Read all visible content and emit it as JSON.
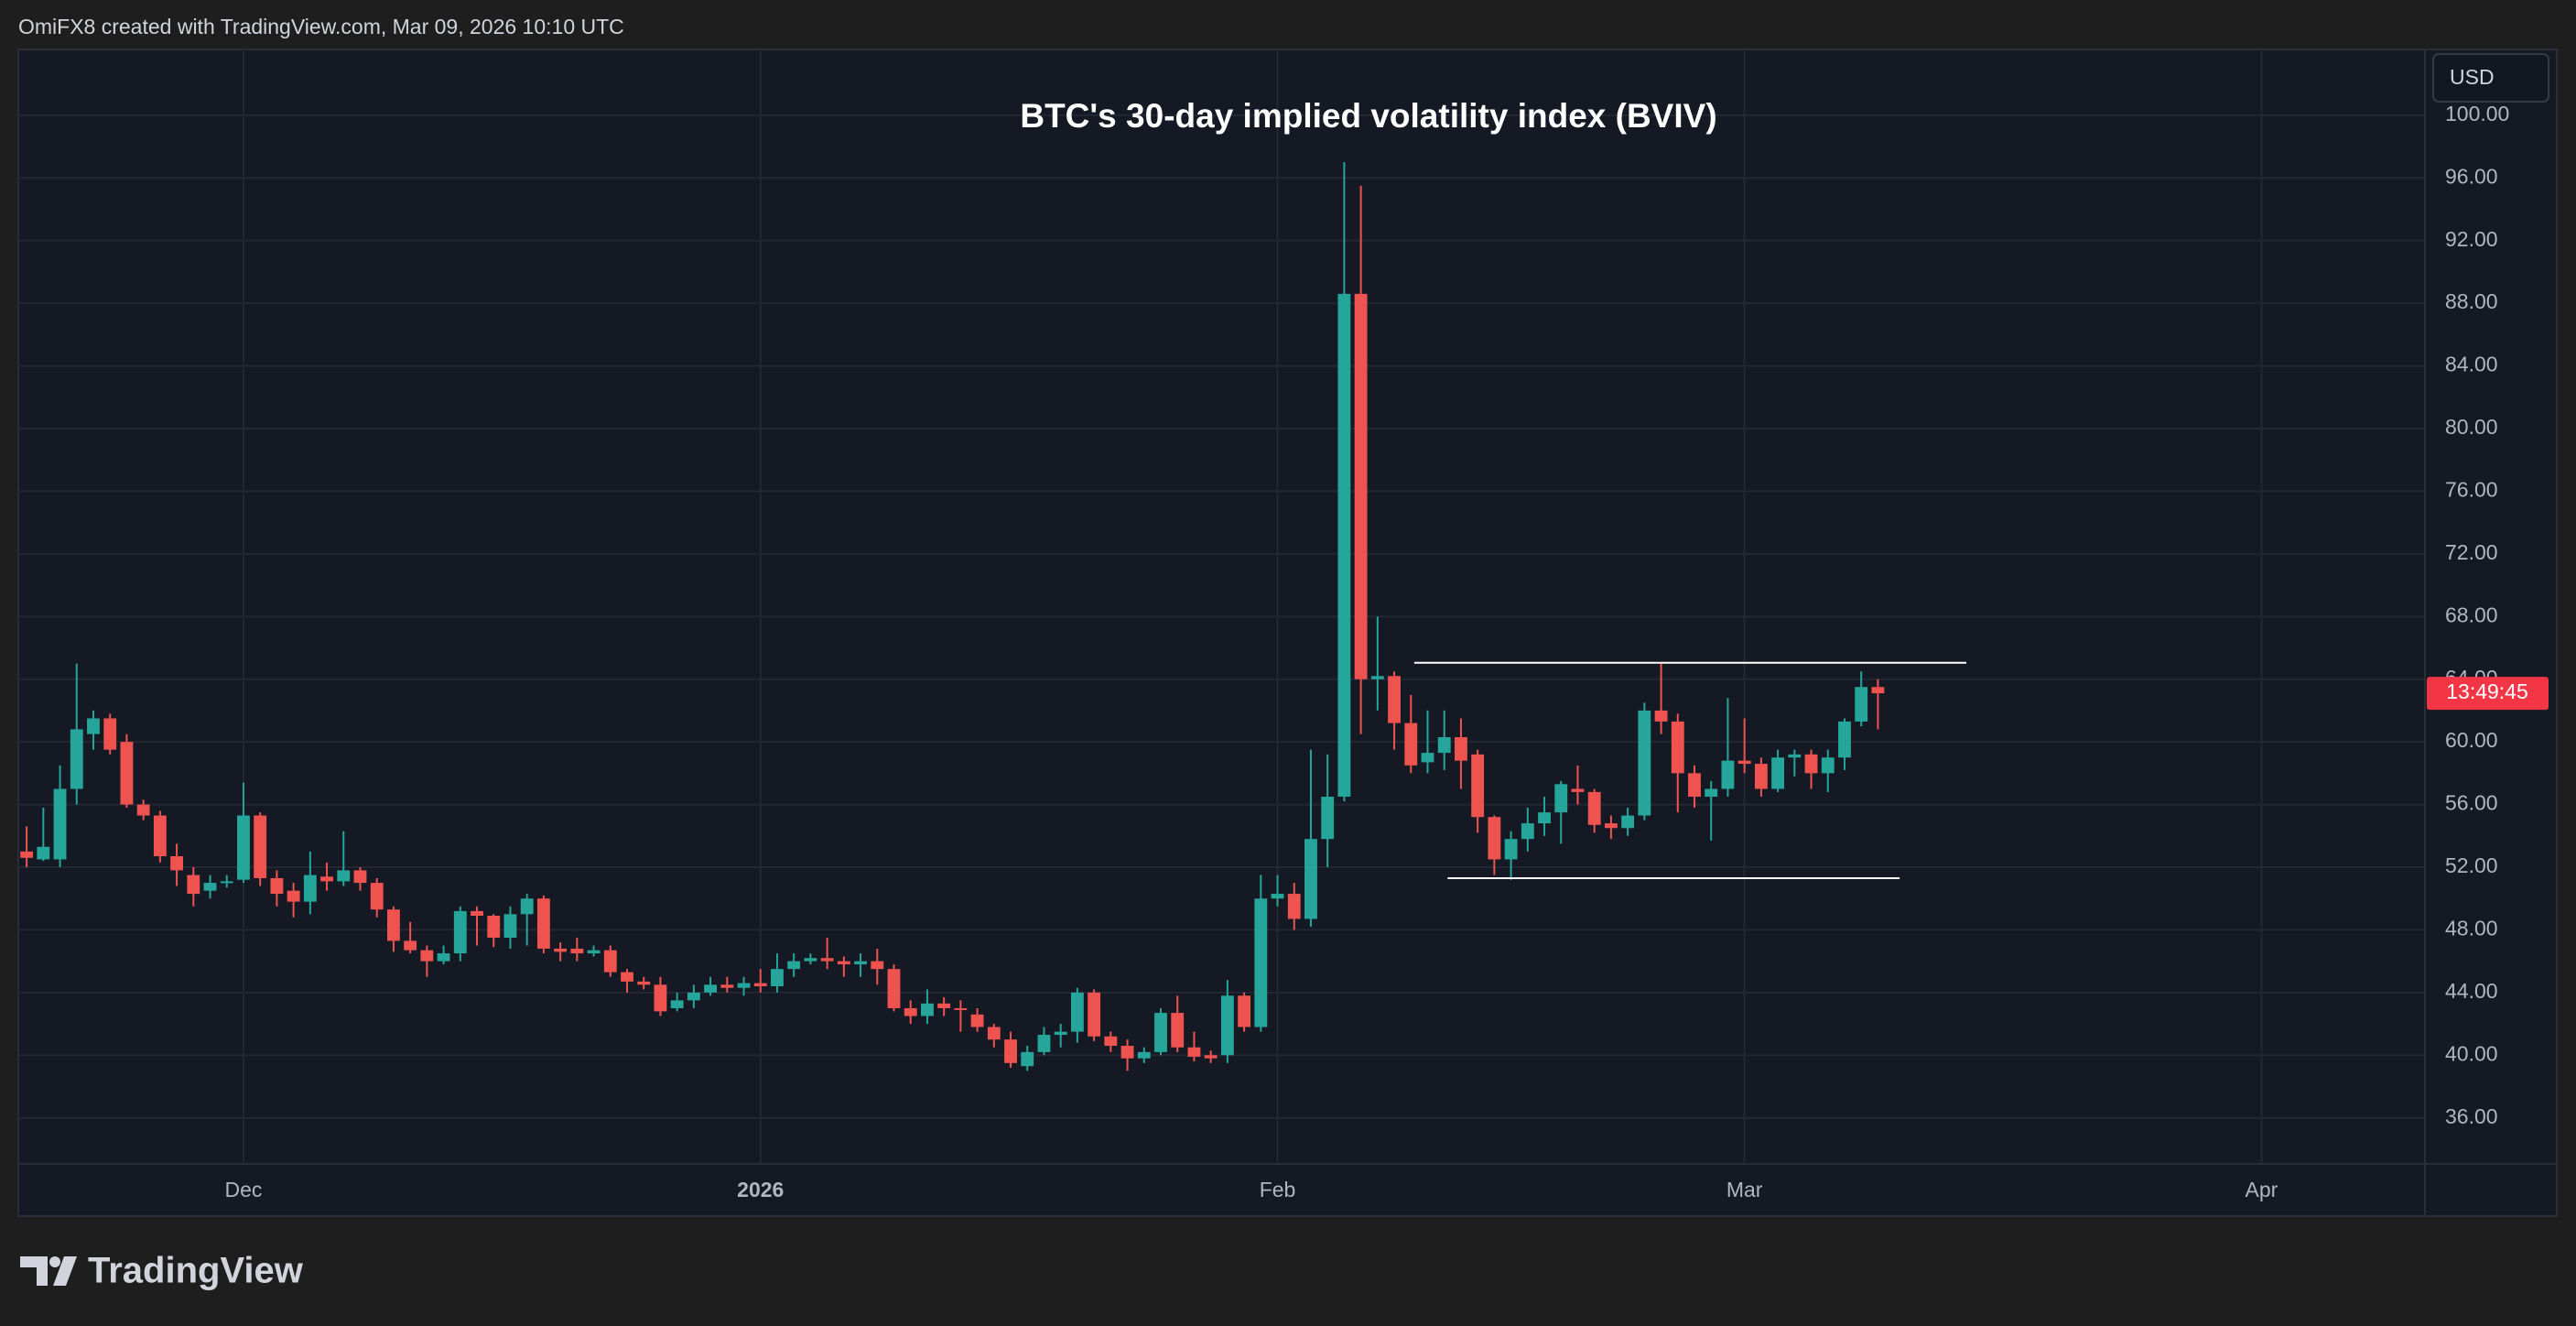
{
  "header": {
    "text": "OmiFX8 created with TradingView.com, Mar 09, 2026 10:10 UTC"
  },
  "currency_button": "USD",
  "countdown": "13:49:45",
  "brand": "TradingView",
  "chart_data": {
    "type": "candlestick",
    "title": "BTC's 30-day implied volatility index (BVIV)",
    "up_color": "#26a69a",
    "down_color": "#ef5350",
    "grid": true,
    "x": [
      0,
      1,
      2,
      3,
      4,
      5,
      6,
      7,
      8,
      9,
      10,
      11,
      12,
      13,
      14,
      15,
      16,
      17,
      18,
      19,
      20,
      21,
      22,
      23,
      24,
      25,
      26,
      27,
      28,
      29,
      30,
      31,
      32,
      33,
      34,
      35,
      36,
      37,
      38,
      39,
      40,
      41,
      42,
      43,
      44,
      45,
      46,
      47,
      48,
      49,
      50,
      51,
      52,
      53,
      54,
      55,
      56,
      57,
      58,
      59,
      60,
      61,
      62,
      63,
      64,
      65,
      66,
      67,
      68,
      69,
      70,
      71,
      72,
      73,
      74,
      75,
      76,
      77,
      78,
      79,
      80,
      81,
      82,
      83,
      84,
      85,
      86,
      87,
      88,
      89,
      90,
      91,
      92,
      93,
      94,
      95,
      96,
      97,
      98,
      99,
      100,
      101,
      102,
      103,
      104,
      105,
      106,
      107,
      108,
      109,
      110,
      111
    ],
    "open": [
      53,
      52.5,
      52.5,
      57,
      60.5,
      61.5,
      60,
      56,
      55.3,
      52.7,
      51.5,
      50.5,
      51,
      51.2,
      55.3,
      51.3,
      50.5,
      49.8,
      51.4,
      51.1,
      51.8,
      51,
      49.3,
      47.3,
      46.7,
      46,
      46.5,
      49.2,
      48.9,
      47.5,
      49,
      50,
      46.8,
      46.8,
      46.5,
      46.7,
      45.3,
      44.7,
      44.5,
      43,
      43.5,
      44,
      44.5,
      44.3,
      44.6,
      44.4,
      45.5,
      46,
      46.2,
      46,
      45.8,
      46,
      45.5,
      43,
      42.5,
      43.3,
      43,
      42.6,
      41.8,
      41,
      39.3,
      40.2,
      41.3,
      41.5,
      44,
      41.2,
      40.6,
      39.8,
      40.2,
      42.7,
      40.5,
      40,
      40,
      43.8,
      41.8,
      50,
      50.3,
      48.7,
      53.8,
      56.5,
      88.6,
      64,
      64.2,
      61.2,
      58.7,
      59.3,
      60.3,
      59.2,
      55.2,
      52.5,
      53.8,
      54.8,
      55.5,
      57,
      56.8,
      54.8,
      54.5,
      55.3,
      62,
      61.3,
      58,
      56.5,
      57,
      58.8,
      58.6,
      57,
      59,
      59.2,
      58,
      59,
      61.3,
      63.5
    ],
    "high": [
      54.6,
      55.8,
      58.5,
      65,
      62,
      61.8,
      60.5,
      56.3,
      55.6,
      53.5,
      52,
      51.5,
      51.5,
      57.4,
      55.5,
      51.8,
      51,
      53,
      52.3,
      54.3,
      52,
      51.3,
      49.5,
      48.5,
      47,
      47,
      49.5,
      49.5,
      49,
      49.5,
      50.3,
      50.2,
      47.2,
      47.5,
      47,
      47,
      45.5,
      45,
      45,
      44,
      44.5,
      45,
      45,
      45,
      45.5,
      46.5,
      46.5,
      46.5,
      47.5,
      46.3,
      46.5,
      46.8,
      45.8,
      43.5,
      44.2,
      43.7,
      43.5,
      43,
      42,
      41.5,
      40.6,
      41.8,
      42,
      44.3,
      44.2,
      41.5,
      41,
      40.5,
      43,
      43.8,
      41.5,
      40.3,
      44.8,
      44,
      51.5,
      51.5,
      51,
      59.5,
      59.2,
      97,
      95.5,
      68,
      64.5,
      63,
      62,
      62,
      61.5,
      59.5,
      55.3,
      54.3,
      55.8,
      56.5,
      57.5,
      58.5,
      57,
      55.3,
      55.8,
      62.5,
      65,
      61.8,
      58.5,
      57.5,
      62.8,
      61.5,
      59,
      59.5,
      59.5,
      59.5,
      59.5,
      61.5,
      64.5,
      64
    ],
    "low": [
      52,
      52.4,
      52,
      56,
      59.5,
      59.2,
      55.8,
      55,
      52.3,
      50.8,
      49.5,
      50,
      50.7,
      51,
      50.8,
      49.5,
      48.8,
      49,
      50.5,
      50.8,
      50.5,
      48.8,
      46.6,
      46.5,
      45,
      45.8,
      46,
      47,
      46.9,
      46.8,
      47,
      46.5,
      46,
      46,
      46.3,
      45,
      44,
      44.2,
      42.5,
      42.8,
      43,
      43.8,
      44,
      43.8,
      44,
      44,
      45,
      45.8,
      45.5,
      45,
      45,
      44.5,
      42.8,
      42,
      42,
      42.5,
      41.5,
      41.5,
      40.5,
      39.2,
      39,
      40,
      40.5,
      40.8,
      40.9,
      40.2,
      39,
      39.5,
      40,
      40.2,
      39.6,
      39.5,
      39.5,
      41.5,
      41.5,
      49.5,
      48,
      48.2,
      52,
      56.2,
      60.5,
      62,
      59.5,
      58,
      58,
      58.2,
      57,
      54.2,
      51.5,
      51.2,
      53,
      54,
      53.5,
      56,
      54.2,
      53.8,
      54,
      55,
      60.5,
      55.5,
      55.8,
      53.7,
      56.5,
      58,
      56.5,
      56.8,
      57.8,
      57,
      56.8,
      58.2,
      61,
      60.8
    ],
    "close": [
      52.6,
      53.3,
      57,
      60.8,
      61.5,
      59.5,
      56,
      55.3,
      52.7,
      51.8,
      50.3,
      51,
      51.1,
      55.3,
      51.3,
      50.3,
      49.8,
      51.5,
      51.1,
      51.8,
      51,
      49.3,
      47.3,
      46.7,
      46,
      46.5,
      49.2,
      48.9,
      47.5,
      49,
      50,
      46.8,
      46.6,
      46.5,
      46.7,
      45.3,
      44.7,
      44.5,
      42.8,
      43.5,
      44,
      44.5,
      44.3,
      44.6,
      44.4,
      45.5,
      46,
      46.2,
      46,
      45.8,
      46,
      45.5,
      43,
      42.5,
      43.3,
      43,
      42.9,
      41.8,
      41,
      39.5,
      40.2,
      41.3,
      41.5,
      44,
      41.2,
      40.6,
      39.8,
      40.2,
      42.7,
      40.5,
      39.9,
      39.8,
      43.8,
      41.8,
      50,
      50.3,
      48.7,
      53.8,
      56.5,
      88.6,
      64,
      64.2,
      61.2,
      58.5,
      59.3,
      60.3,
      58.8,
      55.2,
      52.5,
      53.8,
      54.8,
      55.5,
      57.3,
      56.8,
      54.7,
      54.5,
      55.3,
      62,
      61.3,
      58,
      56.5,
      57,
      58.8,
      58.6,
      57,
      59,
      59.2,
      58,
      59,
      61.3,
      63.5,
      63.1
    ],
    "xlim": [
      -0.5,
      143.8
    ],
    "xticks": [
      {
        "value": 13,
        "label": "Dec"
      },
      {
        "value": 44,
        "label": "2026"
      },
      {
        "value": 75,
        "label": "Feb"
      },
      {
        "value": 103,
        "label": "Mar"
      },
      {
        "value": 134,
        "label": "Apr"
      }
    ],
    "ylim": [
      33.06,
      104.2
    ],
    "yticks": [
      {
        "value": 36,
        "label": "36.00"
      },
      {
        "value": 40,
        "label": "40.00"
      },
      {
        "value": 44,
        "label": "44.00"
      },
      {
        "value": 48,
        "label": "48.00"
      },
      {
        "value": 52,
        "label": "52.00"
      },
      {
        "value": 56,
        "label": "56.00"
      },
      {
        "value": 60,
        "label": "60.00"
      },
      {
        "value": 64,
        "label": "64.00"
      },
      {
        "value": 68,
        "label": "68.00"
      },
      {
        "value": 72,
        "label": "72.00"
      },
      {
        "value": 76,
        "label": "76.00"
      },
      {
        "value": 80,
        "label": "80.00"
      },
      {
        "value": 84,
        "label": "84.00"
      },
      {
        "value": 88,
        "label": "88.00"
      },
      {
        "value": 92,
        "label": "92.00"
      },
      {
        "value": 96,
        "label": "96.00"
      },
      {
        "value": 100,
        "label": "100.00"
      }
    ],
    "lines": [
      {
        "x": [
          83.2,
          116.3
        ],
        "y": 65.05
      },
      {
        "x": [
          85.2,
          112.3
        ],
        "y": 51.3
      }
    ]
  }
}
